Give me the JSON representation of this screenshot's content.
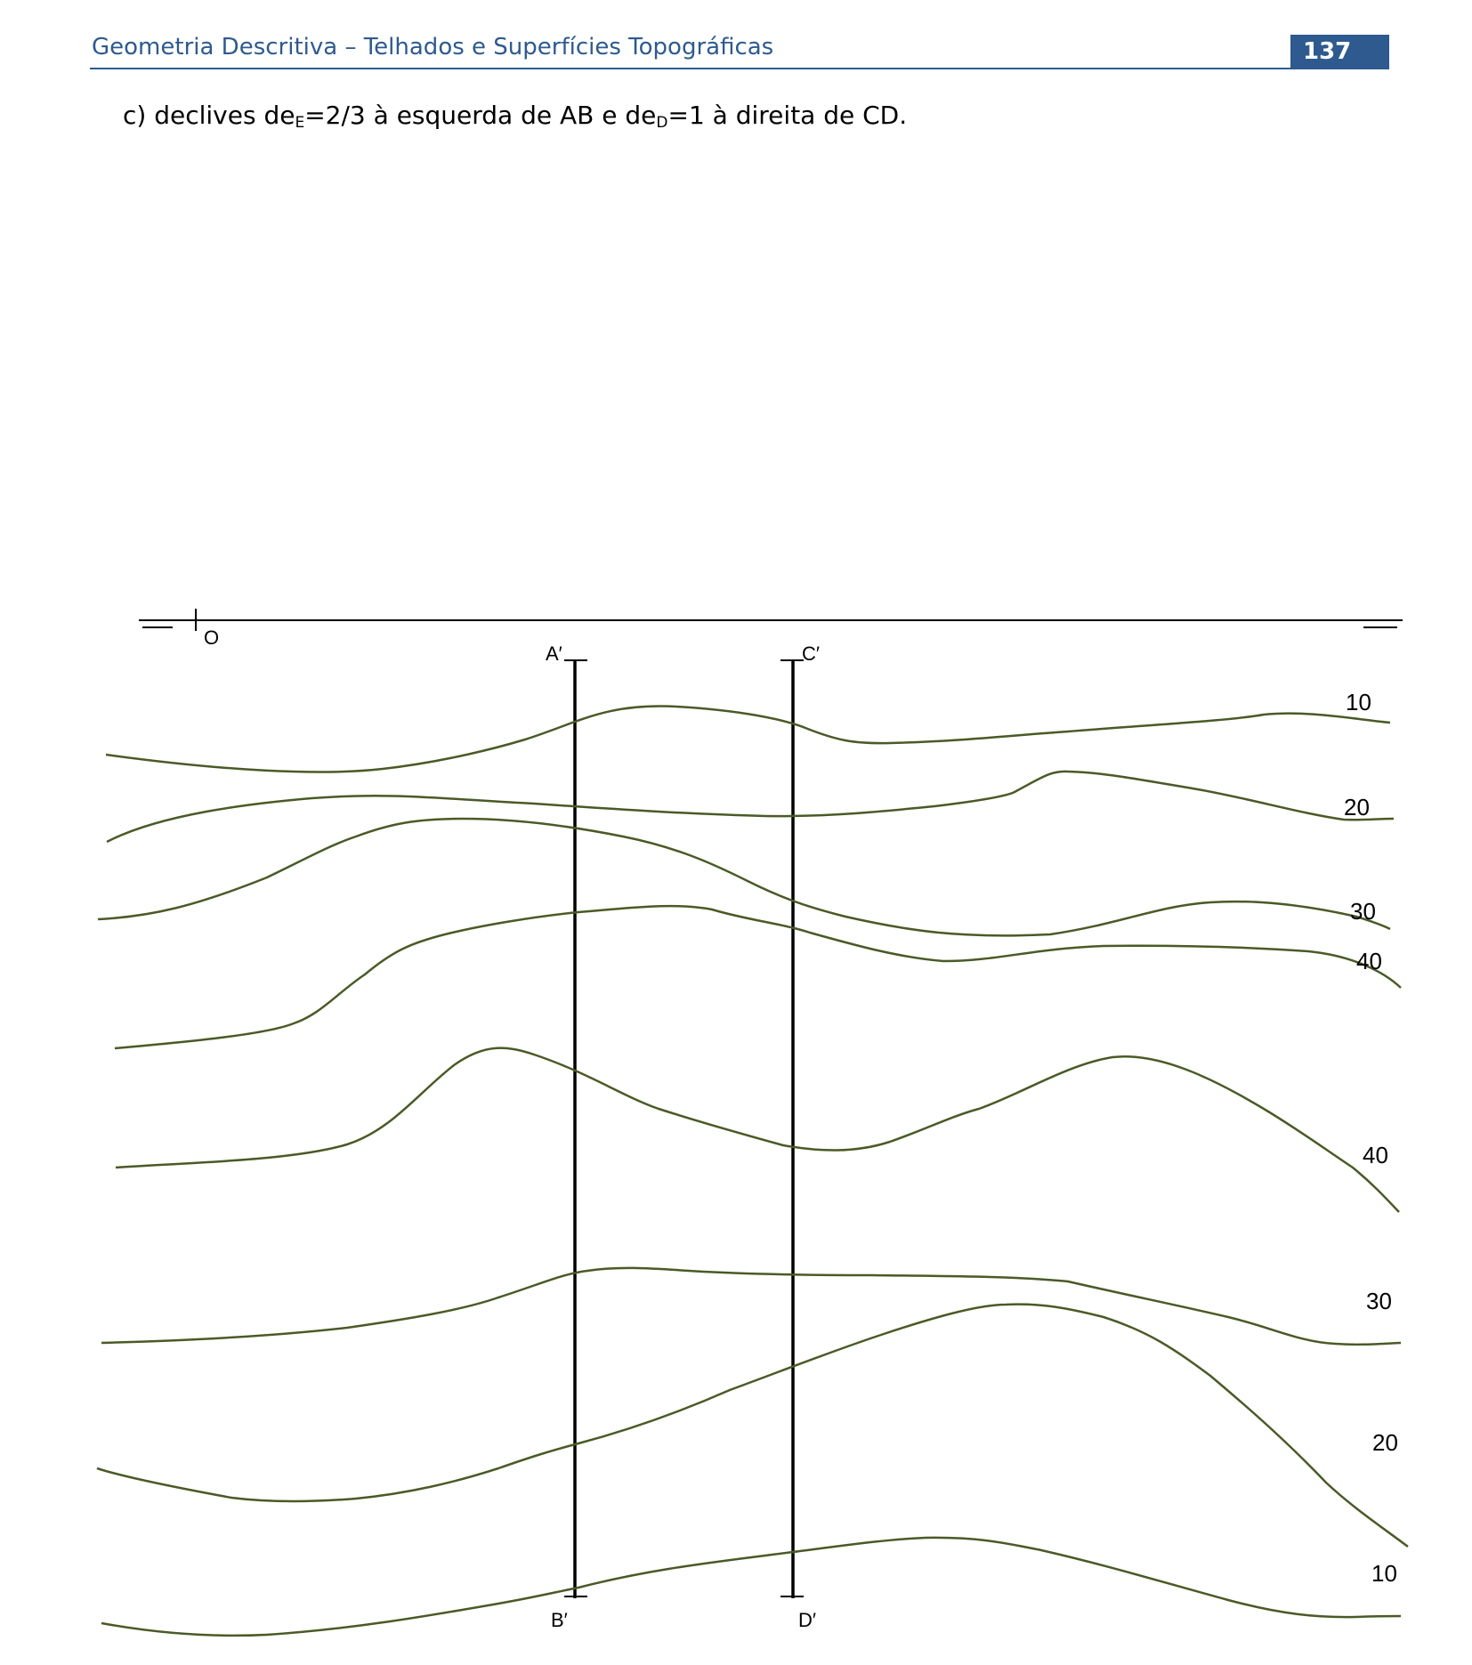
{
  "header": {
    "title": "Geometria Descritiva – Telhados e Superfícies Topográficas",
    "page_number": "137",
    "color": "#2e5a8f"
  },
  "exercise": {
    "prefix": "c) declives de",
    "sub_left": "E",
    "middle": "=2/3 à esquerda de AB e de",
    "sub_right": "D",
    "suffix": "=1 à direita de CD."
  },
  "figure": {
    "origin_label": "O",
    "points": {
      "a": "A′",
      "b": "B′",
      "c": "C′",
      "d": "D′"
    },
    "contour_color": "#4a5a26",
    "contour_labels": [
      "10",
      "20",
      "30",
      "40",
      "40",
      "30",
      "20",
      "10"
    ]
  }
}
